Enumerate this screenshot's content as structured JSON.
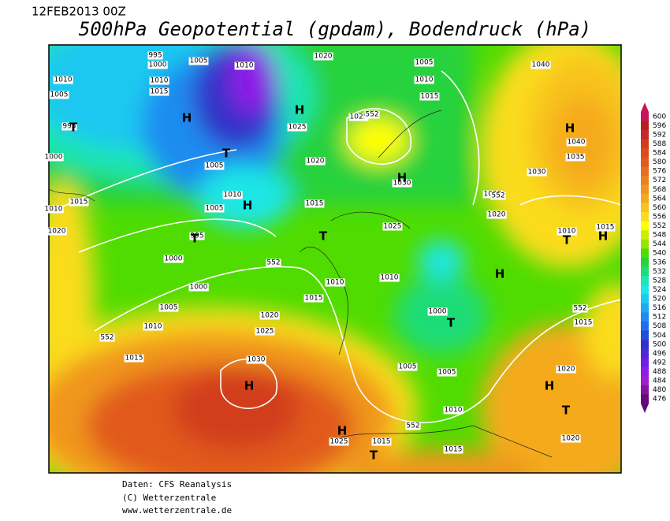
{
  "header": {
    "date": "12FEB2013 00Z",
    "title": "500hPa Geopotential (gpdam), Bodendruck (hPa)"
  },
  "footer": {
    "source": "Daten: CFS Reanalysis",
    "copyright": "(C) Wetterzentrale",
    "url": "www.wetterzentrale.de"
  },
  "colorbar": {
    "levels": [
      600,
      596,
      592,
      588,
      584,
      580,
      576,
      572,
      568,
      564,
      560,
      556,
      552,
      548,
      544,
      540,
      536,
      532,
      528,
      524,
      520,
      516,
      512,
      508,
      504,
      500,
      496,
      492,
      488,
      484,
      480,
      476
    ],
    "colors": [
      "#c8145a",
      "#b41e1e",
      "#c82828",
      "#d23c1e",
      "#dc4b1e",
      "#e15a1e",
      "#e66e1e",
      "#eb821e",
      "#f0961e",
      "#f5aa1e",
      "#f8c31e",
      "#fadc1e",
      "#ffff00",
      "#c8f000",
      "#96e600",
      "#50dc00",
      "#28d23c",
      "#1edc78",
      "#1ee6b4",
      "#1ee6e6",
      "#1ec8f0",
      "#1eaaf0",
      "#1e8cf0",
      "#1e6ef0",
      "#1e50dc",
      "#3232c8",
      "#5028d2",
      "#6e1ee6",
      "#8c1ee6",
      "#a01ed2",
      "#8214a0",
      "#640a78"
    ]
  },
  "map": {
    "labels": [
      "995",
      "1000",
      "1005",
      "1010",
      "1020",
      "1005",
      "1010",
      "1015",
      "1040",
      "1010",
      "1005",
      "1010",
      "1015",
      "995",
      "1000",
      "1025",
      "1025",
      "1005",
      "1020",
      "1040",
      "1035",
      "1030",
      "1030",
      "1010",
      "1015",
      "1005",
      "1015",
      "1025",
      "1020",
      "1010",
      "1020",
      "995",
      "1025",
      "1015",
      "1010",
      "1000",
      "1010",
      "1010",
      "1000",
      "1015",
      "1005",
      "1020",
      "1000",
      "1015",
      "1010",
      "1025",
      "1015",
      "1030",
      "1005",
      "1005",
      "1020",
      "1010",
      "1025",
      "1015",
      "1015",
      "1020",
      "552",
      "552",
      "552",
      "552",
      "552",
      "552"
    ],
    "systems": [
      "H",
      "T",
      "H",
      "H",
      "T",
      "T",
      "H",
      "H",
      "H",
      "T",
      "H",
      "T",
      "H",
      "H",
      "T",
      "H",
      "T",
      "T"
    ]
  }
}
